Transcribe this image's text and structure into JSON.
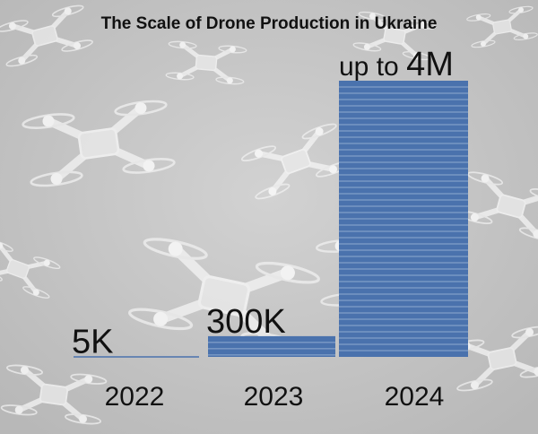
{
  "chart_data": {
    "type": "bar",
    "title": "The Scale of Drone Production in Ukraine",
    "categories": [
      "2022",
      "2023",
      "2024"
    ],
    "values": [
      5000,
      300000,
      4000000
    ],
    "value_labels": [
      "5K",
      "300K",
      "4M"
    ],
    "value_prefix_2024": "up to",
    "xlabel": "",
    "ylabel": "",
    "ylim": [
      0,
      4000000
    ],
    "grid": false,
    "bar_color": "#4a72ad",
    "background": "drone photo collage (grayscale)"
  }
}
